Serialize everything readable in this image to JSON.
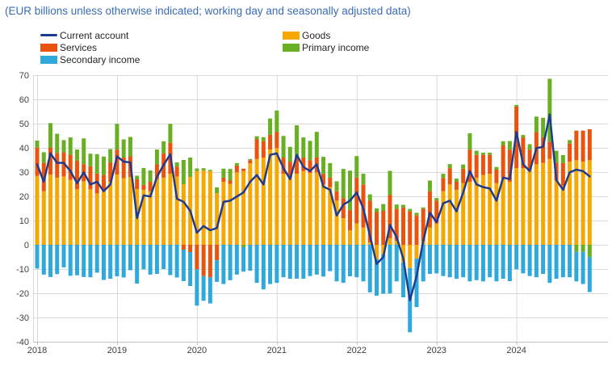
{
  "title": "(EUR billions unless otherwise indicated; working day and seasonally adjusted data)",
  "colors": {
    "title_text": "#3a6cb5",
    "current_account": "#1d3c8f",
    "goods": "#f6a800",
    "services": "#e9530e",
    "primary_income": "#68b021",
    "secondary_income": "#2fa9dc",
    "gridline": "#d9d9d9",
    "axis_line": "#c0c0c0",
    "axis_text": "#404040"
  },
  "legend": {
    "columns": [
      [
        {
          "label": "Current account",
          "color": "#1d3c8f",
          "swatch": "line",
          "name": "legend-current-account"
        },
        {
          "label": "Services",
          "color": "#e9530e",
          "swatch": "block",
          "name": "legend-services"
        },
        {
          "label": "Secondary income",
          "color": "#2fa9dc",
          "swatch": "block",
          "name": "legend-secondary-income"
        }
      ],
      [
        {
          "label": "Goods",
          "color": "#f6a800",
          "swatch": "block",
          "name": "legend-goods"
        },
        {
          "label": "Primary income",
          "color": "#68b021",
          "swatch": "block",
          "name": "legend-primary-income"
        }
      ]
    ]
  },
  "chart_data": {
    "type": "bar",
    "subtype": "monthly-stacked-bars-with-line-overlay",
    "title": "(EUR billions unless otherwise indicated; working day and seasonally adjusted data)",
    "xlabel": "",
    "ylabel": "EUR billions",
    "x_start": "2018-01",
    "x_end": "2024-12",
    "x_tick_labels": [
      "2018",
      "2019",
      "2020",
      "2021",
      "2022",
      "2023",
      "2024"
    ],
    "y_ticks": [
      70,
      60,
      50,
      40,
      30,
      20,
      10,
      0,
      -10,
      -20,
      -30,
      -40
    ],
    "ylim": [
      -40,
      70
    ],
    "grid": true,
    "legend_position": "top-left",
    "series": [
      {
        "name": "Goods",
        "type": "bar",
        "color": "#f6a800",
        "values": [
          28.4,
          22.1,
          28.9,
          27.7,
          28.2,
          26.8,
          22.9,
          26.2,
          22.9,
          21.2,
          22.6,
          26.0,
          29.0,
          27.5,
          28.0,
          23.0,
          22.7,
          22.1,
          27.1,
          27.7,
          29.3,
          28.2,
          25.0,
          28.0,
          30.4,
          30.7,
          30.4,
          21.3,
          26.0,
          25.1,
          29.9,
          30.4,
          33.6,
          35.4,
          36.0,
          39.3,
          39.9,
          29.3,
          27.7,
          29.3,
          30.4,
          29.6,
          29.9,
          24.9,
          23.8,
          18.2,
          11.0,
          6.0,
          8.8,
          7.1,
          1.0,
          -6.0,
          -4.0,
          2.7,
          1.6,
          -7.3,
          -9.6,
          -5.7,
          1.6,
          7.1,
          8.8,
          22.1,
          24.9,
          22.7,
          25.4,
          26.0,
          27.7,
          28.8,
          29.3,
          25.4,
          27.7,
          26.0,
          31.6,
          31.6,
          31.0,
          33.2,
          33.8,
          35.4,
          26.6,
          24.3,
          34.3,
          34.9,
          34.3,
          34.9
        ]
      },
      {
        "name": "Services",
        "type": "bar",
        "color": "#e9530e",
        "values": [
          11.7,
          11.7,
          11.1,
          10.2,
          10.0,
          10.4,
          11.8,
          7.1,
          9.5,
          8.2,
          6.3,
          8.0,
          10.3,
          8.5,
          8.5,
          4.0,
          2.0,
          3.9,
          6.1,
          10.0,
          12.8,
          4.0,
          -2.0,
          -3.0,
          -10.1,
          -12.9,
          -13.4,
          -6.4,
          1.7,
          1.4,
          2.8,
          1.0,
          1.3,
          8.1,
          6.7,
          6.1,
          6.6,
          6.7,
          6.6,
          7.3,
          5.6,
          5.3,
          6.1,
          4.4,
          3.9,
          3.9,
          8.3,
          8.3,
          18.9,
          17.8,
          17.2,
          13.5,
          14.0,
          17.8,
          13.3,
          15.4,
          13.8,
          12.1,
          13.3,
          15.0,
          9.4,
          5.5,
          6.7,
          3.3,
          6.0,
          13.3,
          9.4,
          8.3,
          7.8,
          5.6,
          13.3,
          13.3,
          25.5,
          12.7,
          8.3,
          13.3,
          10.6,
          7.2,
          7.2,
          9.4,
          7.4,
          12.2,
          12.8,
          12.8
        ]
      },
      {
        "name": "Primary income",
        "type": "bar",
        "color": "#68b021",
        "values": [
          2.9,
          4.4,
          10.2,
          7.9,
          5.0,
          7.1,
          4.6,
          10.6,
          5.2,
          8.0,
          7.5,
          5.5,
          10.6,
          7.5,
          8.0,
          1.5,
          7.0,
          4.7,
          6.1,
          5.0,
          7.8,
          1.8,
          10.0,
          8.0,
          1.1,
          0.9,
          0.5,
          2.4,
          3.7,
          4.8,
          1.0,
          -1.0,
          0.5,
          1.3,
          1.7,
          6.7,
          8.9,
          8.9,
          6.1,
          12.7,
          8.3,
          8.0,
          10.6,
          7.0,
          6.0,
          4.1,
          12.0,
          16.3,
          8.9,
          4.4,
          2.6,
          1.5,
          2.8,
          10.0,
          1.7,
          1.1,
          1.0,
          1.1,
          0.5,
          4.4,
          1.1,
          1.7,
          1.7,
          1.3,
          1.7,
          6.7,
          1.7,
          0.9,
          0.9,
          1.1,
          1.7,
          3.5,
          0.6,
          1.0,
          2.2,
          6.4,
          8.0,
          25.9,
          5.0,
          3.3,
          1.5,
          -2.9,
          -2.9,
          -5.1
        ]
      },
      {
        "name": "Secondary income",
        "type": "bar",
        "color": "#2fa9dc",
        "values": [
          -9.8,
          -12.3,
          -13.3,
          -12.1,
          -9.3,
          -12.8,
          -12.6,
          -13.3,
          -13.4,
          -11.5,
          -14.5,
          -14.0,
          -13.0,
          -13.5,
          -10.5,
          -16.0,
          -10.1,
          -12.3,
          -12.0,
          -10.0,
          -12.5,
          -13.5,
          -13.0,
          -14.0,
          -15.0,
          -10.2,
          -10.8,
          -8.9,
          -16.2,
          -14.6,
          -12.3,
          -10.1,
          -10.7,
          -15.7,
          -18.4,
          -16.2,
          -15.7,
          -13.4,
          -14.0,
          -14.0,
          -14.0,
          -12.9,
          -12.3,
          -13.1,
          -10.9,
          -15.1,
          -15.7,
          -13.0,
          -13.4,
          -15.1,
          -19.6,
          -15.0,
          -16.2,
          -20.1,
          -15.1,
          -14.4,
          -26.5,
          -20.0,
          -15.1,
          -12.0,
          -11.8,
          -12.9,
          -13.4,
          -14.0,
          -13.4,
          -15.1,
          -14.6,
          -15.1,
          -13.4,
          -15.1,
          -14.0,
          -15.0,
          -10.1,
          -11.8,
          -12.9,
          -13.4,
          -12.0,
          -15.7,
          -14.0,
          -13.4,
          -13.4,
          -12.2,
          -13.3,
          -14.4
        ]
      },
      {
        "name": "Current account",
        "type": "line",
        "color": "#1d3c8f",
        "values": [
          33.2,
          26.0,
          37.7,
          33.8,
          33.8,
          30.4,
          25.4,
          29.9,
          24.9,
          26.0,
          22.1,
          24.9,
          36.5,
          34.3,
          34.0,
          11.0,
          20.4,
          19.9,
          28.0,
          33.0,
          37.3,
          19.0,
          17.7,
          14.0,
          5.0,
          7.7,
          6.0,
          6.9,
          17.7,
          18.2,
          19.9,
          21.6,
          26.0,
          28.8,
          24.9,
          37.1,
          37.7,
          31.6,
          27.1,
          37.1,
          32.1,
          30.4,
          33.2,
          24.0,
          22.7,
          12.1,
          16.6,
          18.2,
          21.6,
          14.9,
          3.8,
          -7.9,
          -5.1,
          8.2,
          3.2,
          -5.7,
          -22.9,
          -12.9,
          1.6,
          13.2,
          9.3,
          17.1,
          18.2,
          13.8,
          21.6,
          30.4,
          24.9,
          23.8,
          23.2,
          18.2,
          27.7,
          27.1,
          46.6,
          33.2,
          30.4,
          39.9,
          40.4,
          53.8,
          26.6,
          22.7,
          29.9,
          31.0,
          30.4,
          28.2
        ]
      }
    ]
  }
}
